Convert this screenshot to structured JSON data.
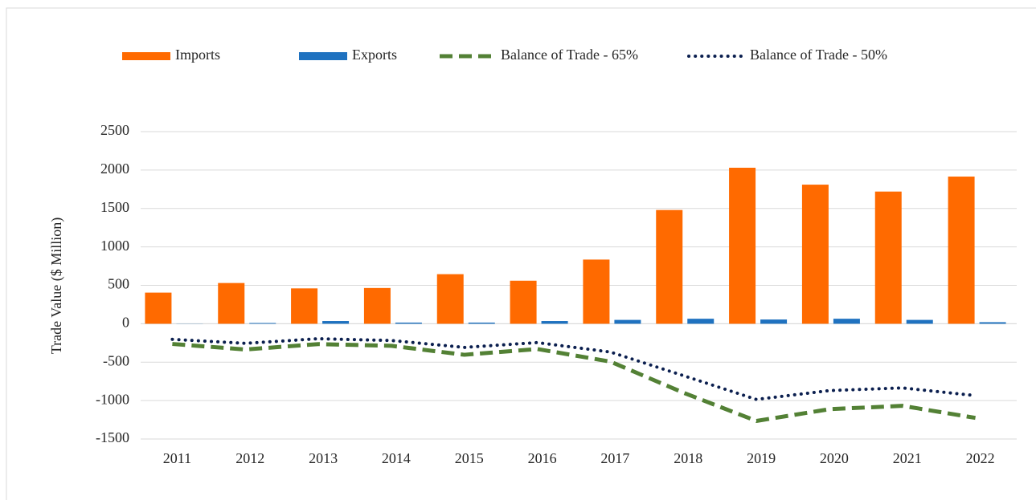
{
  "chart_data": {
    "type": "bar-line",
    "y_label": "Trade Value ($ Million)",
    "categories": [
      "2011",
      "2012",
      "2013",
      "2014",
      "2015",
      "2016",
      "2017",
      "2018",
      "2019",
      "2020",
      "2021",
      "2022"
    ],
    "series": [
      {
        "name": "Imports",
        "type": "bar",
        "color": "#ff6a00",
        "values": [
          405,
          530,
          460,
          465,
          645,
          560,
          835,
          1480,
          2030,
          1810,
          1720,
          1915
        ]
      },
      {
        "name": "Exports",
        "type": "bar",
        "color": "#1f72c0",
        "values": [
          2,
          10,
          35,
          15,
          15,
          35,
          50,
          65,
          55,
          65,
          50,
          20
        ]
      },
      {
        "name": "Balance of Trade - 65%",
        "type": "line",
        "style": "dashed",
        "color": "#538135",
        "values": [
          -263,
          -335,
          -265,
          -287,
          -404,
          -329,
          -493,
          -897,
          -1265,
          -1112,
          -1068,
          -1225
        ]
      },
      {
        "name": "Balance of Trade - 50%",
        "type": "line",
        "style": "dotted",
        "color": "#0b1f4f",
        "values": [
          -203,
          -255,
          -195,
          -218,
          -308,
          -245,
          -368,
          -675,
          -985,
          -870,
          -835,
          -935
        ]
      }
    ],
    "ylim": [
      -1500,
      2500
    ],
    "yticks": [
      -1500,
      -1000,
      -500,
      0,
      500,
      1000,
      1500,
      2000,
      2500
    ],
    "grid": true
  }
}
